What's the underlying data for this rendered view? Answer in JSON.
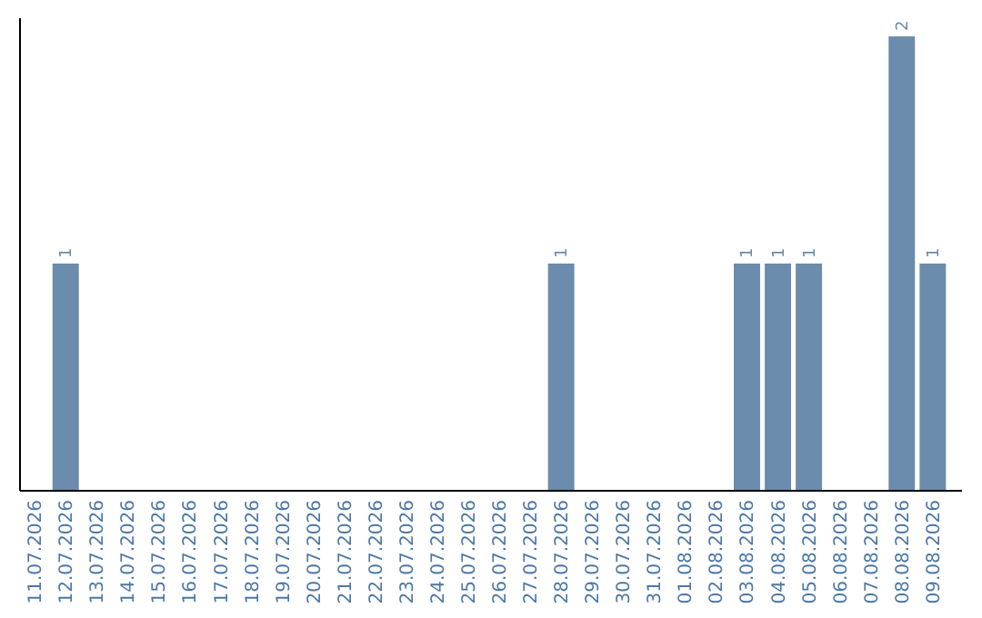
{
  "chart_data": {
    "type": "bar",
    "categories": [
      "11.07.2026",
      "12.07.2026",
      "13.07.2026",
      "14.07.2026",
      "15.07.2026",
      "16.07.2026",
      "17.07.2026",
      "18.07.2026",
      "19.07.2026",
      "20.07.2026",
      "21.07.2026",
      "22.07.2026",
      "23.07.2026",
      "24.07.2026",
      "25.07.2026",
      "26.07.2026",
      "27.07.2026",
      "28.07.2026",
      "29.07.2026",
      "30.07.2026",
      "31.07.2026",
      "01.08.2026",
      "02.08.2026",
      "03.08.2026",
      "04.08.2026",
      "05.08.2026",
      "06.08.2026",
      "07.08.2026",
      "08.08.2026",
      "09.08.2026"
    ],
    "values": [
      0,
      1,
      0,
      0,
      0,
      0,
      0,
      0,
      0,
      0,
      0,
      0,
      0,
      0,
      0,
      0,
      0,
      1,
      0,
      0,
      0,
      0,
      0,
      1,
      1,
      1,
      0,
      0,
      2,
      1
    ],
    "value_labels": [
      null,
      "1",
      null,
      null,
      null,
      null,
      null,
      null,
      null,
      null,
      null,
      null,
      null,
      null,
      null,
      null,
      null,
      "1",
      null,
      null,
      null,
      null,
      null,
      "1",
      "1",
      "1",
      null,
      null,
      "2",
      "1"
    ],
    "color": "#6b8cac",
    "grid": false,
    "tick_labels": "x"
  }
}
